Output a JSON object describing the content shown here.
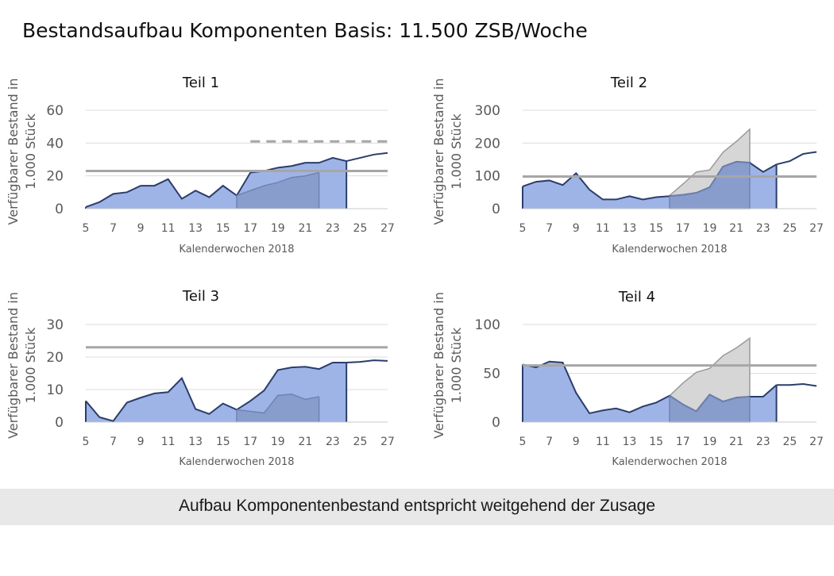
{
  "page": {
    "title": "Bestandsaufbau Komponenten Basis: 11.500 ZSB/Woche",
    "banner": "Aufbau Komponentenbestand entspricht weitgehend der Zusage"
  },
  "colors": {
    "actual_fill": "#9fb4e6",
    "actual_line": "#2b3d6b",
    "overlay_fill": "#8196c4",
    "forecast_fill": "#d6d6d6",
    "forecast_line": "#9a9a9a",
    "reference_line": "#a6a6a6",
    "grid": "#dcdcdc",
    "axis_text": "#5a5a5a"
  },
  "chart_data": [
    {
      "type": "area",
      "title": "Teil 1",
      "xlabel": "Kalenderwochen 2018",
      "ylabel": "Verfügbarer Bestand in 1.000 Stück",
      "xlim": [
        5,
        27
      ],
      "ylim": [
        0,
        60
      ],
      "yticks": [
        0,
        20,
        40,
        60
      ],
      "xticks": [
        "5",
        "7",
        "9",
        "11",
        "13",
        "15",
        "17",
        "19",
        "21",
        "23",
        "25",
        "27"
      ],
      "grid": true,
      "series": [
        {
          "role": "actual",
          "x": [
            5,
            6,
            7,
            8,
            9,
            10,
            11,
            12,
            13,
            14,
            15,
            16,
            17,
            18,
            19,
            20,
            21,
            22,
            23,
            24
          ],
          "values": [
            1,
            4,
            9,
            10,
            14,
            14,
            18,
            6,
            11,
            7,
            14,
            8,
            22,
            23,
            25,
            26,
            28,
            28,
            31,
            29
          ]
        },
        {
          "role": "actual-line",
          "x": [
            24,
            25,
            26,
            27
          ],
          "values": [
            29,
            31,
            33,
            34
          ]
        },
        {
          "role": "overlay",
          "x": [
            16,
            17,
            18,
            19,
            20,
            21,
            22
          ],
          "values": [
            8,
            11,
            14,
            16,
            19,
            20,
            22
          ]
        }
      ],
      "reference_lines": [
        {
          "value": 23,
          "style": "solid",
          "x_from": 5,
          "x_to": 27
        },
        {
          "value": 41,
          "style": "dashed",
          "x_from": 17,
          "x_to": 27
        }
      ]
    },
    {
      "type": "area",
      "title": "Teil 2",
      "xlabel": "Kalenderwochen 2018",
      "ylabel": "Verfügbarer Bestand in 1.000 Stück",
      "xlim": [
        5,
        27
      ],
      "ylim": [
        0,
        300
      ],
      "yticks": [
        0,
        100,
        200,
        300
      ],
      "xticks": [
        "5",
        "7",
        "9",
        "11",
        "13",
        "15",
        "17",
        "19",
        "21",
        "23",
        "25",
        "27"
      ],
      "grid": true,
      "series": [
        {
          "role": "forecast",
          "x": [
            16,
            17,
            18,
            19,
            20,
            21,
            22
          ],
          "values": [
            40,
            75,
            112,
            118,
            172,
            205,
            242
          ]
        },
        {
          "role": "actual",
          "x": [
            5,
            6,
            7,
            8,
            9,
            10,
            11,
            12,
            13,
            14,
            15,
            16,
            17,
            18,
            19,
            20,
            21,
            22,
            23,
            24
          ],
          "values": [
            68,
            82,
            86,
            72,
            108,
            58,
            28,
            28,
            38,
            28,
            35,
            38,
            42,
            48,
            65,
            128,
            143,
            140,
            112,
            135
          ]
        },
        {
          "role": "actual-line",
          "x": [
            24,
            25,
            26,
            27
          ],
          "values": [
            135,
            145,
            167,
            173
          ]
        },
        {
          "role": "overlay",
          "x": [
            16,
            17,
            18,
            19,
            20,
            21,
            22
          ],
          "values": [
            38,
            42,
            48,
            65,
            128,
            143,
            140
          ]
        }
      ],
      "reference_lines": [
        {
          "value": 98,
          "style": "solid",
          "x_from": 5,
          "x_to": 27
        }
      ]
    },
    {
      "type": "area",
      "title": "Teil 3",
      "xlabel": "Kalenderwochen 2018",
      "ylabel": "Verfügbarer Bestand in 1.000 Stück",
      "xlim": [
        5,
        27
      ],
      "ylim": [
        0,
        30
      ],
      "yticks": [
        0,
        10,
        20,
        30
      ],
      "xticks": [
        "5",
        "7",
        "9",
        "11",
        "13",
        "15",
        "17",
        "19",
        "21",
        "23",
        "25",
        "27"
      ],
      "grid": true,
      "series": [
        {
          "role": "actual",
          "x": [
            5,
            6,
            7,
            8,
            9,
            10,
            11,
            12,
            13,
            14,
            15,
            16,
            17,
            18,
            19,
            20,
            21,
            22,
            23,
            24
          ],
          "values": [
            6.5,
            1.5,
            0.3,
            6,
            7.5,
            8.8,
            9.2,
            13.5,
            4,
            2.5,
            5.7,
            3.8,
            6.5,
            9.7,
            16,
            16.8,
            17,
            16.3,
            18.3,
            18.3
          ]
        },
        {
          "role": "actual-line",
          "x": [
            24,
            25,
            26,
            27
          ],
          "values": [
            18.3,
            18.5,
            19,
            18.8
          ]
        },
        {
          "role": "overlay",
          "x": [
            16,
            17,
            18,
            19,
            20,
            21,
            22
          ],
          "values": [
            3.8,
            3.3,
            2.8,
            8.2,
            8.6,
            7,
            7.8
          ]
        }
      ],
      "reference_lines": [
        {
          "value": 23,
          "style": "solid",
          "x_from": 5,
          "x_to": 27
        }
      ]
    },
    {
      "type": "area",
      "title": "Teil 4",
      "xlabel": "Kalenderwochen 2018",
      "ylabel": "Verfügbarer Bestand in 1.000 Stück",
      "xlim": [
        5,
        27
      ],
      "ylim": [
        0,
        100
      ],
      "yticks": [
        0,
        50,
        100
      ],
      "xticks": [
        "5",
        "7",
        "9",
        "11",
        "13",
        "15",
        "17",
        "19",
        "21",
        "23",
        "25",
        "27"
      ],
      "grid": true,
      "series": [
        {
          "role": "forecast",
          "x": [
            16,
            17,
            18,
            19,
            20,
            21,
            22
          ],
          "values": [
            27,
            40,
            51,
            55,
            68,
            76,
            86
          ]
        },
        {
          "role": "actual",
          "x": [
            5,
            6,
            7,
            8,
            9,
            10,
            11,
            12,
            13,
            14,
            15,
            16,
            17,
            18,
            19,
            20,
            21,
            22,
            23,
            24
          ],
          "values": [
            59,
            56,
            62,
            61,
            30,
            9,
            12,
            14,
            10,
            16,
            20,
            27,
            18,
            11,
            28,
            21,
            25,
            26,
            26,
            38
          ]
        },
        {
          "role": "actual-line",
          "x": [
            24,
            25,
            26,
            27
          ],
          "values": [
            38,
            38,
            39,
            37
          ]
        },
        {
          "role": "overlay",
          "x": [
            16,
            17,
            18,
            19,
            20,
            21,
            22
          ],
          "values": [
            27,
            18,
            11,
            28,
            21,
            25,
            26
          ]
        }
      ],
      "reference_lines": [
        {
          "value": 58,
          "style": "solid",
          "x_from": 5,
          "x_to": 27
        }
      ]
    }
  ]
}
